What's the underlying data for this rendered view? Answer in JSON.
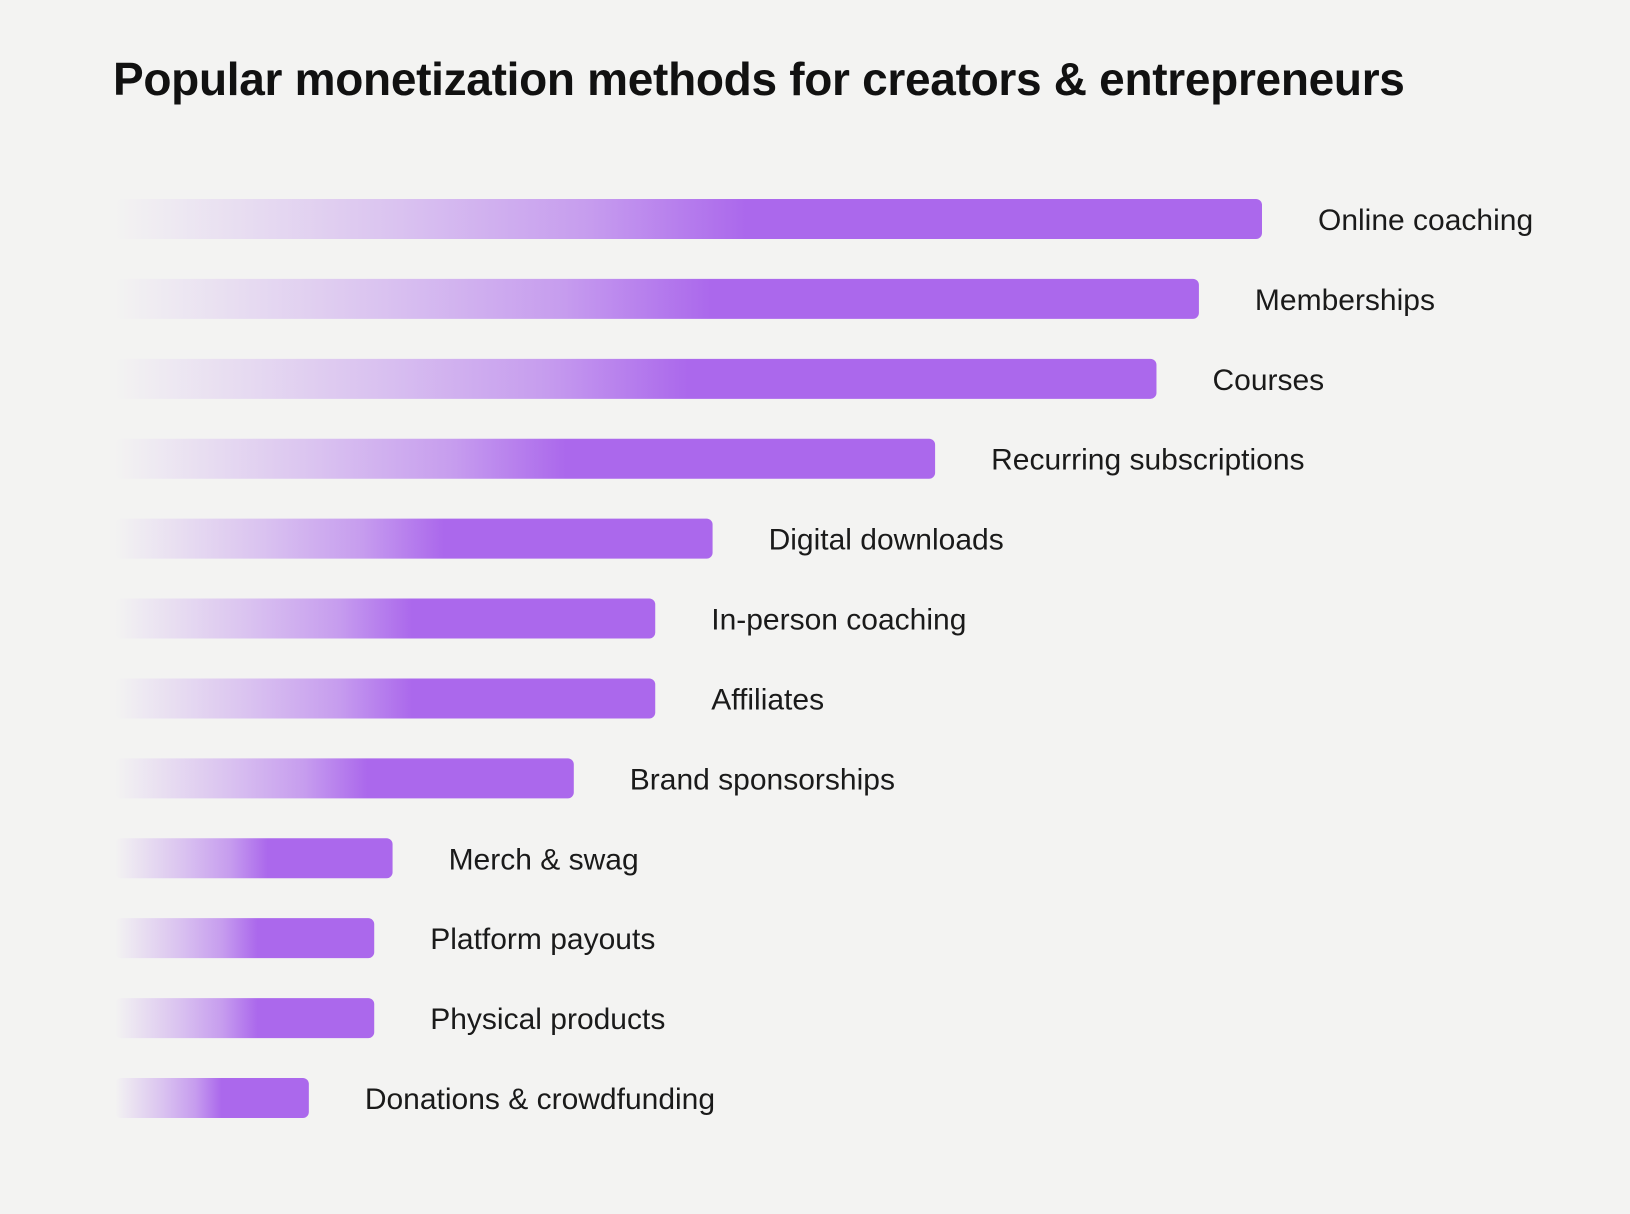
{
  "chart_data": {
    "type": "bar",
    "orientation": "horizontal",
    "title": "Popular monetization methods for creators & entrepreneurs",
    "xlabel": "",
    "ylabel": "",
    "xlim": [
      0,
      100
    ],
    "grid": false,
    "legend": "none",
    "categories": [
      "Online coaching",
      "Memberships",
      "Courses",
      "Recurring subscriptions",
      "Digital downloads",
      "In-person coaching",
      "Affiliates",
      "Brand sponsorships",
      "Merch & swag",
      "Platform payouts",
      "Physical products",
      "Donations & crowdfunding"
    ],
    "values": [
      100,
      94.5,
      90.8,
      71.5,
      52.1,
      47.1,
      47.1,
      40.0,
      24.2,
      22.6,
      22.6,
      16.9
    ],
    "bar_color": "#ab68ec",
    "bar_fade_color": "#f3f3f2"
  }
}
